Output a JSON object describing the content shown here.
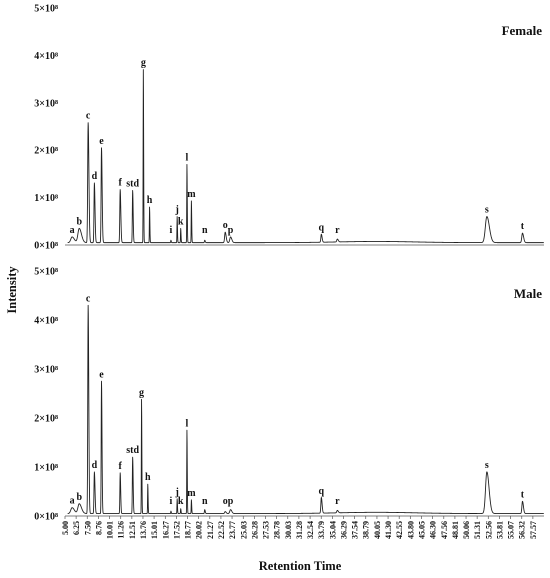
{
  "chart_data": {
    "type": "line",
    "xlabel": "Retention Time",
    "ylabel": "Intensity",
    "xlim": [
      5.0,
      58.82
    ],
    "ylim": [
      0,
      500000000
    ],
    "x_ticks": [
      "5.00",
      "6.25",
      "7.50",
      "8.76",
      "10.01",
      "11.26",
      "12.51",
      "13.76",
      "15.01",
      "16.27",
      "17.52",
      "18.77",
      "20.02",
      "21.27",
      "22.52",
      "23.77",
      "25.03",
      "26.28",
      "27.53",
      "28.78",
      "30.03",
      "31.28",
      "32.54",
      "33.79",
      "35.04",
      "36.29",
      "37.54",
      "38.79",
      "40.05",
      "41.30",
      "42.55",
      "43.80",
      "45.05",
      "46.30",
      "47.56",
      "48.81",
      "50.06",
      "51.31",
      "52.56",
      "53.81",
      "55.07",
      "56.32",
      "57.57"
    ],
    "y_ticks": [
      {
        "label": "0×10⁸",
        "value": 0
      },
      {
        "label": "1×10⁸",
        "value": 100000000
      },
      {
        "label": "2×10⁸",
        "value": 200000000
      },
      {
        "label": "3×10⁸",
        "value": 300000000
      },
      {
        "label": "4×10⁸",
        "value": 400000000
      },
      {
        "label": "5×10⁸",
        "value": 500000000
      }
    ],
    "series": [
      {
        "name": "Female",
        "baseline": 5000000,
        "peaks": [
          {
            "label": "a",
            "rt": 5.8,
            "height": 12000000,
            "width": 0.35
          },
          {
            "label": "b",
            "rt": 6.6,
            "height": 30000000,
            "width": 0.35
          },
          {
            "label": "c",
            "rt": 7.6,
            "height": 253000000,
            "width": 0.12
          },
          {
            "label": "d",
            "rt": 8.3,
            "height": 126000000,
            "width": 0.1
          },
          {
            "label": "e",
            "rt": 9.1,
            "height": 200000000,
            "width": 0.1
          },
          {
            "label": "f",
            "rt": 11.2,
            "height": 112000000,
            "width": 0.1
          },
          {
            "label": "std",
            "rt": 12.6,
            "height": 110000000,
            "width": 0.08
          },
          {
            "label": "g",
            "rt": 13.8,
            "height": 365000000,
            "width": 0.05
          },
          {
            "label": "h",
            "rt": 14.5,
            "height": 75000000,
            "width": 0.05
          },
          {
            "label": "i",
            "rt": 16.9,
            "height": 5000000,
            "width": 0.05
          },
          {
            "label": "j",
            "rt": 17.6,
            "height": 55000000,
            "width": 0.05
          },
          {
            "label": "k",
            "rt": 18.0,
            "height": 30000000,
            "width": 0.05
          },
          {
            "label": "l",
            "rt": 18.7,
            "height": 165000000,
            "width": 0.05
          },
          {
            "label": "m",
            "rt": 19.2,
            "height": 88000000,
            "width": 0.05
          },
          {
            "label": "n",
            "rt": 20.7,
            "height": 5000000,
            "width": 0.08
          },
          {
            "label": "o",
            "rt": 23.0,
            "height": 22000000,
            "width": 0.15
          },
          {
            "label": "p",
            "rt": 23.6,
            "height": 12000000,
            "width": 0.2
          },
          {
            "label": "q",
            "rt": 33.8,
            "height": 17000000,
            "width": 0.12
          },
          {
            "label": "r",
            "rt": 35.6,
            "height": 6000000,
            "width": 0.15
          },
          {
            "label": "s",
            "rt": 52.4,
            "height": 55000000,
            "width": 0.4
          },
          {
            "label": "t",
            "rt": 56.4,
            "height": 20000000,
            "width": 0.18
          }
        ]
      },
      {
        "name": "Male",
        "baseline": 5000000,
        "peaks": [
          {
            "label": "a",
            "rt": 5.8,
            "height": 12000000,
            "width": 0.35
          },
          {
            "label": "b",
            "rt": 6.6,
            "height": 20000000,
            "width": 0.35
          },
          {
            "label": "c",
            "rt": 7.6,
            "height": 425000000,
            "width": 0.1
          },
          {
            "label": "d",
            "rt": 8.3,
            "height": 85000000,
            "width": 0.1
          },
          {
            "label": "e",
            "rt": 9.1,
            "height": 270000000,
            "width": 0.08
          },
          {
            "label": "f",
            "rt": 11.2,
            "height": 83000000,
            "width": 0.08
          },
          {
            "label": "std",
            "rt": 12.6,
            "height": 115000000,
            "width": 0.08
          },
          {
            "label": "g",
            "rt": 13.6,
            "height": 233000000,
            "width": 0.05
          },
          {
            "label": "h",
            "rt": 14.3,
            "height": 60000000,
            "width": 0.05
          },
          {
            "label": "i",
            "rt": 16.9,
            "height": 5000000,
            "width": 0.05
          },
          {
            "label": "j",
            "rt": 17.6,
            "height": 30000000,
            "width": 0.05
          },
          {
            "label": "k",
            "rt": 18.0,
            "height": 10000000,
            "width": 0.05
          },
          {
            "label": "l",
            "rt": 18.7,
            "height": 170000000,
            "width": 0.05
          },
          {
            "label": "m",
            "rt": 19.2,
            "height": 28000000,
            "width": 0.05
          },
          {
            "label": "n",
            "rt": 20.7,
            "height": 8000000,
            "width": 0.08
          },
          {
            "label": "o",
            "rt": 23.0,
            "height": 4000000,
            "width": 0.15
          },
          {
            "label": "p",
            "rt": 23.6,
            "height": 8000000,
            "width": 0.2
          },
          {
            "label": "q",
            "rt": 33.8,
            "height": 32000000,
            "width": 0.12
          },
          {
            "label": "r",
            "rt": 35.6,
            "height": 5000000,
            "width": 0.15
          },
          {
            "label": "s",
            "rt": 52.4,
            "height": 85000000,
            "width": 0.35
          },
          {
            "label": "t",
            "rt": 56.4,
            "height": 25000000,
            "width": 0.15
          }
        ]
      }
    ]
  }
}
